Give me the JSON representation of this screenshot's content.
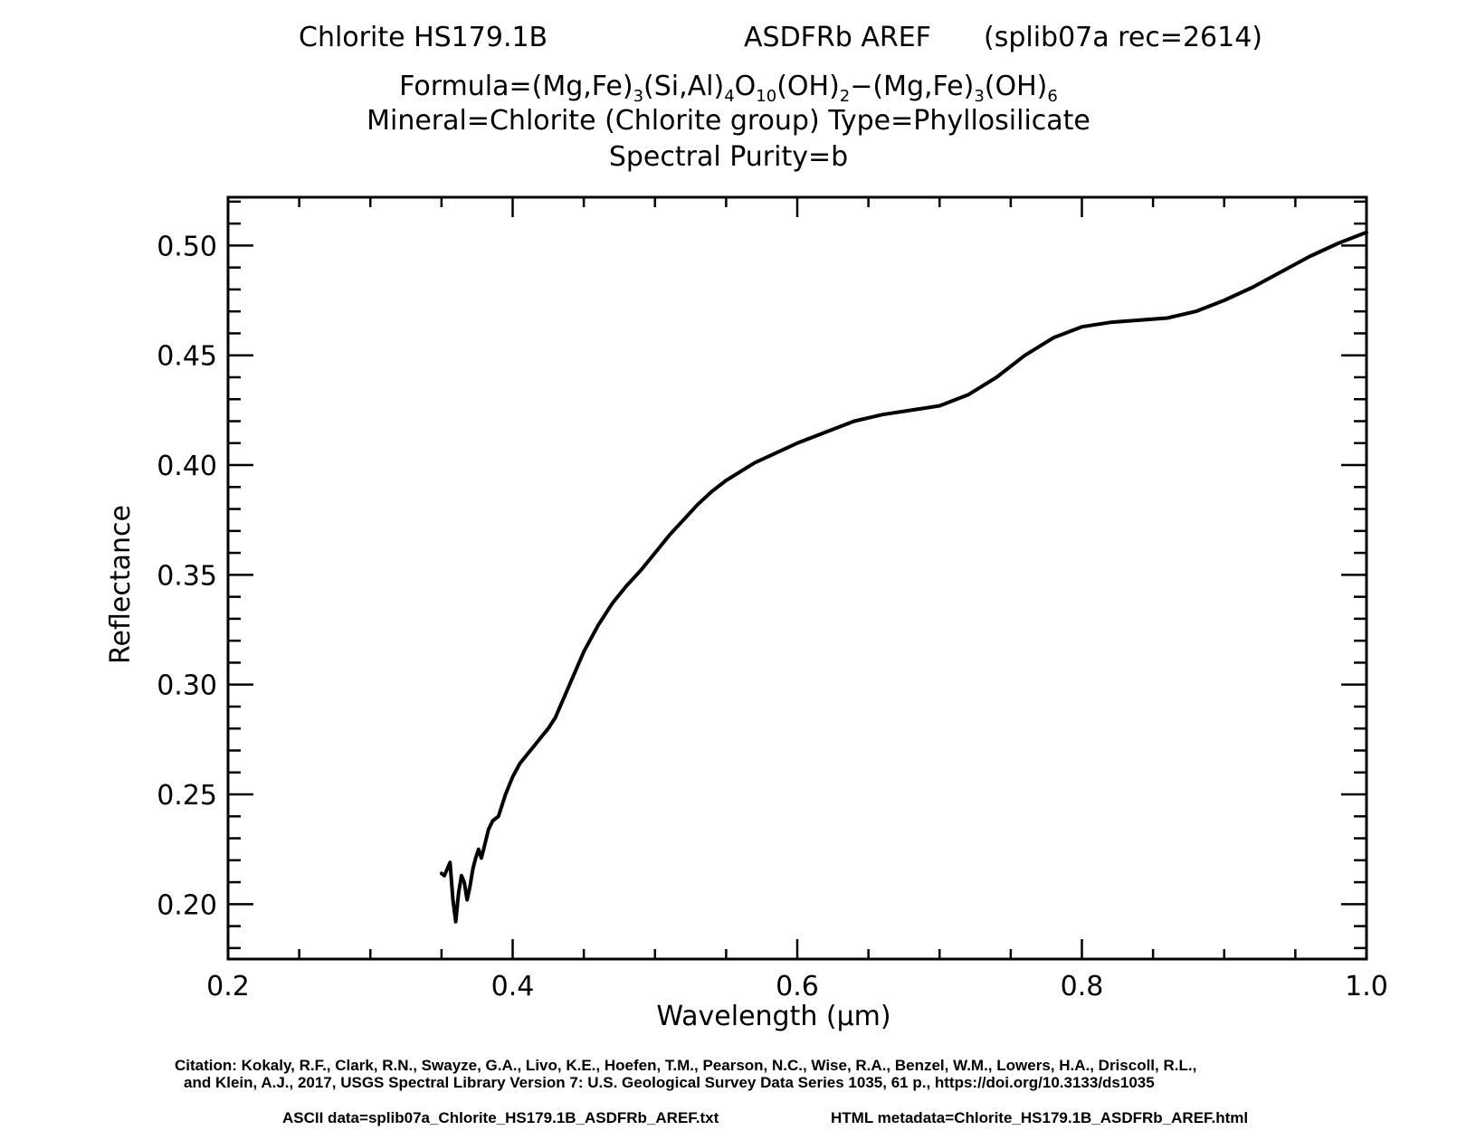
{
  "header": {
    "sample": "Chlorite HS179.1B",
    "instrument": "ASDFRb AREF",
    "record": "(splib07a rec=2614)",
    "formula_prefix": "Formula=(Mg,Fe)",
    "formula_sub1": "3",
    "formula_p2": "(Si,Al)",
    "formula_sub2": "4",
    "formula_p3": "O",
    "formula_sub3": "10",
    "formula_p4": "(OH)",
    "formula_sub4": "2",
    "formula_p5": "−(Mg,Fe)",
    "formula_sub5": "3",
    "formula_p6": "(OH)",
    "formula_sub6": "6",
    "mineral_line": "Mineral=Chlorite (Chlorite group)   Type=Phyllosilicate",
    "purity_line": "Spectral Purity=b"
  },
  "footer": {
    "citation_1": "Citation: Kokaly, R.F., Clark, R.N., Swayze, G.A., Livo, K.E., Hoefen, T.M., Pearson, N.C., Wise, R.A., Benzel, W.M., Lowers, H.A., Driscoll, R.L.,",
    "citation_2": "and Klein, A.J., 2017, USGS Spectral Library Version 7: U.S. Geological Survey Data Series 1035, 61 p., https://doi.org/10.3133/ds1035",
    "ascii_data": "ASCII data=splib07a_Chlorite_HS179.1B_ASDFRb_AREF.txt",
    "html_meta": "HTML metadata=Chlorite_HS179.1B_ASDFRb_AREF.html"
  },
  "chart_data": {
    "type": "line",
    "title": "",
    "xlabel": "Wavelength (μm)",
    "ylabel": "Reflectance",
    "xlim": [
      0.2,
      1.0
    ],
    "ylim": [
      0.175,
      0.522
    ],
    "x_ticks": [
      0.2,
      0.4,
      0.6,
      0.8,
      1.0
    ],
    "x_tick_labels": [
      "0.2",
      "0.4",
      "0.6",
      "0.8",
      "1.0"
    ],
    "y_ticks": [
      0.2,
      0.25,
      0.3,
      0.35,
      0.4,
      0.45,
      0.5
    ],
    "y_tick_labels": [
      "0.20",
      "0.25",
      "0.30",
      "0.35",
      "0.40",
      "0.45",
      "0.50"
    ],
    "grid": false,
    "line_color": "#000000",
    "series": [
      {
        "x": [
          0.35,
          0.352,
          0.354,
          0.356,
          0.358,
          0.36,
          0.362,
          0.364,
          0.366,
          0.368,
          0.37,
          0.372,
          0.374,
          0.376,
          0.378,
          0.38,
          0.383,
          0.386,
          0.39,
          0.395,
          0.4,
          0.405,
          0.41,
          0.415,
          0.42,
          0.425,
          0.43,
          0.44,
          0.45,
          0.46,
          0.47,
          0.48,
          0.49,
          0.5,
          0.51,
          0.52,
          0.53,
          0.54,
          0.55,
          0.56,
          0.57,
          0.58,
          0.6,
          0.62,
          0.64,
          0.66,
          0.68,
          0.7,
          0.72,
          0.74,
          0.76,
          0.78,
          0.8,
          0.82,
          0.84,
          0.86,
          0.88,
          0.9,
          0.92,
          0.94,
          0.96,
          0.98,
          1.0
        ],
        "y": [
          0.214,
          0.213,
          0.216,
          0.219,
          0.202,
          0.192,
          0.205,
          0.213,
          0.21,
          0.202,
          0.208,
          0.216,
          0.221,
          0.225,
          0.221,
          0.226,
          0.234,
          0.238,
          0.24,
          0.25,
          0.258,
          0.264,
          0.268,
          0.272,
          0.276,
          0.28,
          0.285,
          0.3,
          0.315,
          0.327,
          0.337,
          0.345,
          0.352,
          0.36,
          0.368,
          0.375,
          0.382,
          0.388,
          0.393,
          0.397,
          0.401,
          0.404,
          0.41,
          0.415,
          0.42,
          0.423,
          0.425,
          0.427,
          0.432,
          0.44,
          0.45,
          0.458,
          0.463,
          0.465,
          0.466,
          0.467,
          0.47,
          0.475,
          0.481,
          0.488,
          0.495,
          0.501,
          0.506
        ]
      }
    ]
  }
}
